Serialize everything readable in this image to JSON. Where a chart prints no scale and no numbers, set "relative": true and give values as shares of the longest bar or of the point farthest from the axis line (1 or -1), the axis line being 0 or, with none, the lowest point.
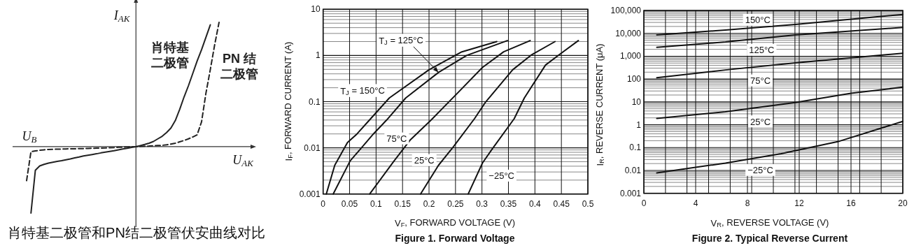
{
  "chart_data": [
    {
      "type": "line",
      "relative": true,
      "title": "肖特基二极管和PN结二极管伏安曲线对比",
      "xlabel": "U$_{AK}$",
      "ylabel": "I$_{AK}$",
      "categories": [
        null,
        null,
        null,
        null,
        null,
        null,
        null,
        null,
        null,
        null,
        null,
        null,
        null,
        null,
        null,
        null,
        null,
        null,
        null,
        null,
        null,
        null,
        null,
        null,
        null,
        null,
        null,
        null,
        null,
        null,
        null,
        null,
        null,
        null,
        null,
        null,
        null,
        null,
        null,
        null,
        null,
        null,
        null,
        null,
        null
      ],
      "series": [
        {
          "color": "#222222",
          "line_style": "solid",
          "values": [
            null,
            -0.534,
            -0.19,
            -0.155,
            -0.142,
            -0.132,
            -0.125,
            -0.118,
            -0.112,
            -0.105,
            -0.098,
            -0.09,
            -0.083,
            -0.075,
            -0.069,
            -0.063,
            -0.057,
            -0.05,
            -0.044,
            -0.038,
            -0.032,
            -0.025,
            -0.019,
            -0.013,
            -0.006,
            0,
            0.009,
            0.018,
            0.028,
            0.042,
            0.063,
            0.084,
            0.114,
            0.15,
            0.21,
            0.3,
            0.4,
            0.49,
            0.59,
            0.69,
            0.78,
            0.88,
            0.98,
            null,
            null
          ]
        },
        {
          "color": "#222222",
          "line_style": "dashed",
          "values": [
            -0.273,
            -0.04,
            -0.034,
            -0.029,
            -0.025,
            -0.022,
            -0.021,
            -0.02,
            -0.019,
            -0.018,
            -0.017,
            -0.017,
            -0.016,
            -0.015,
            -0.014,
            -0.013,
            -0.012,
            -0.011,
            -0.01,
            -0.008,
            -0.007,
            -0.005,
            -0.004,
            -0.003,
            -0.001,
            0,
            0.002,
            0.004,
            0.005,
            0.007,
            0.009,
            0.011,
            0.015,
            0.021,
            0.028,
            0.039,
            0.05,
            0.063,
            0.078,
            0.096,
            0.2,
            0.43,
            0.62,
            0.82,
            1
          ]
        }
      ],
      "annotations": [
        "肖特基二极管",
        "PN 结二极管",
        "U$_{B}$"
      ]
    },
    {
      "type": "line",
      "log": "y",
      "grid": true,
      "title": "Figure 1. Forward Voltage",
      "xlabel": "V$_{F}$, FORWARD VOLTAGE (V)",
      "ylabel": "I$_{F}$, FORWARD CURRENT (A)",
      "xlim": [
        0,
        0.5
      ],
      "ylim": [
        0.001,
        10
      ],
      "xticks": [
        0,
        0.05,
        0.1,
        0.15,
        0.2,
        0.25,
        0.3,
        0.35,
        0.4,
        0.45,
        0.5
      ],
      "yticks": [
        0.001,
        0.01,
        0.1,
        1,
        10
      ],
      "series": [
        {
          "color": "#111111",
          "x": [
            0.006,
            0.022,
            0.046,
            0.064,
            0.09,
            0.125,
            0.2,
            0.262,
            0.328
          ],
          "values": [
            0.001,
            0.0042,
            0.013,
            0.02,
            0.043,
            0.12,
            0.49,
            1.2,
            2
          ]
        },
        {
          "color": "#111111",
          "x": [
            0.019,
            0.051,
            0.095,
            0.12,
            0.156,
            0.218,
            0.271,
            0.348
          ],
          "values": [
            0.001,
            0.0052,
            0.02,
            0.04,
            0.12,
            0.43,
            1,
            2.1
          ]
        },
        {
          "color": "#111111",
          "x": [
            0.088,
            0.134,
            0.165,
            0.204,
            0.253,
            0.301,
            0.341,
            0.391
          ],
          "values": [
            0.001,
            0.0052,
            0.015,
            0.04,
            0.15,
            0.55,
            1.2,
            2.1
          ]
        },
        {
          "color": "#111111",
          "x": [
            0.184,
            0.218,
            0.246,
            0.286,
            0.306,
            0.358,
            0.394,
            0.438
          ],
          "values": [
            0.001,
            0.0042,
            0.0105,
            0.043,
            0.095,
            0.49,
            1.04,
            2
          ]
        },
        {
          "color": "#111111",
          "x": [
            0.274,
            0.301,
            0.319,
            0.361,
            0.38,
            0.42,
            0.446,
            0.482
          ],
          "values": [
            0.001,
            0.0047,
            0.0093,
            0.043,
            0.12,
            0.62,
            1.04,
            2.1
          ]
        }
      ],
      "annotations": [
        "T$_{J}$ = 125°C",
        "T$_{J}$ = 150°C",
        {
          "text": "75°C",
          "x": 0.139,
          "y": 0.016
        },
        {
          "text": "25°C",
          "x": 0.191,
          "y": 0.0054
        },
        {
          "text": "−25°C",
          "x": 0.337,
          "y": 0.0025
        }
      ]
    },
    {
      "type": "line",
      "log": "y",
      "grid": true,
      "title": "Figure 2. Typical Reverse Current",
      "xlabel": "V$_{R}$, REVERSE VOLTAGE (V)",
      "ylabel": "I$_{R}$, REVERSE CURRENT (μA)",
      "xlim": [
        0,
        20
      ],
      "ylim": [
        0.001,
        100000
      ],
      "xticks": [
        0,
        {
          "value": 1.67,
          "label": null
        },
        {
          "value": 3.33,
          "label": null
        },
        4,
        {
          "value": 5,
          "label": null
        },
        {
          "value": 6.67,
          "label": null
        },
        8,
        {
          "value": 8.33,
          "label": null
        },
        {
          "value": 10,
          "label": null
        },
        {
          "value": 11.67,
          "label": null
        },
        12,
        {
          "value": 13.33,
          "label": null
        },
        {
          "value": 15,
          "label": null
        },
        16,
        {
          "value": 16.67,
          "label": null
        },
        {
          "value": 18.33,
          "label": null
        },
        20
      ],
      "yticks": [
        0.001,
        0.01,
        0.1,
        1,
        10,
        100,
        {
          "value": 1000,
          "label": "1,000"
        },
        {
          "value": 10000,
          "label": "10,000"
        },
        {
          "value": 100000,
          "label": "100,000"
        }
      ],
      "series": [
        {
          "color": "#111111",
          "x": [
            1,
            6.3,
            11.7,
            20
          ],
          "values": [
            8500,
            14000,
            24500,
            67000
          ]
        },
        {
          "color": "#111111",
          "x": [
            1,
            6.3,
            11.7,
            20
          ],
          "values": [
            2450,
            4200,
            8500,
            18000
          ]
        },
        {
          "color": "#111111",
          "x": [
            1,
            6.3,
            11.7,
            20
          ],
          "values": [
            115,
            250,
            510,
            1350
          ]
        },
        {
          "color": "#111111",
          "x": [
            1,
            6.3,
            11.7,
            16,
            20
          ],
          "values": [
            1.9,
            3.7,
            9.4,
            24,
            44
          ]
        },
        {
          "color": "#111111",
          "x": [
            1,
            6.3,
            10.6,
            15.1,
            20
          ],
          "values": [
            0.0078,
            0.021,
            0.054,
            0.19,
            1.4
          ]
        }
      ],
      "annotations": [
        {
          "text": "150°C",
          "x": 8.8,
          "y": 39000
        },
        {
          "text": "125°C",
          "x": 9.1,
          "y": 1900
        },
        {
          "text": "75°C",
          "x": 9,
          "y": 87
        },
        {
          "text": "25°C",
          "x": 9,
          "y": 1.4
        },
        {
          "text": "−25°C",
          "x": 9,
          "y": 0.0105
        }
      ]
    }
  ]
}
